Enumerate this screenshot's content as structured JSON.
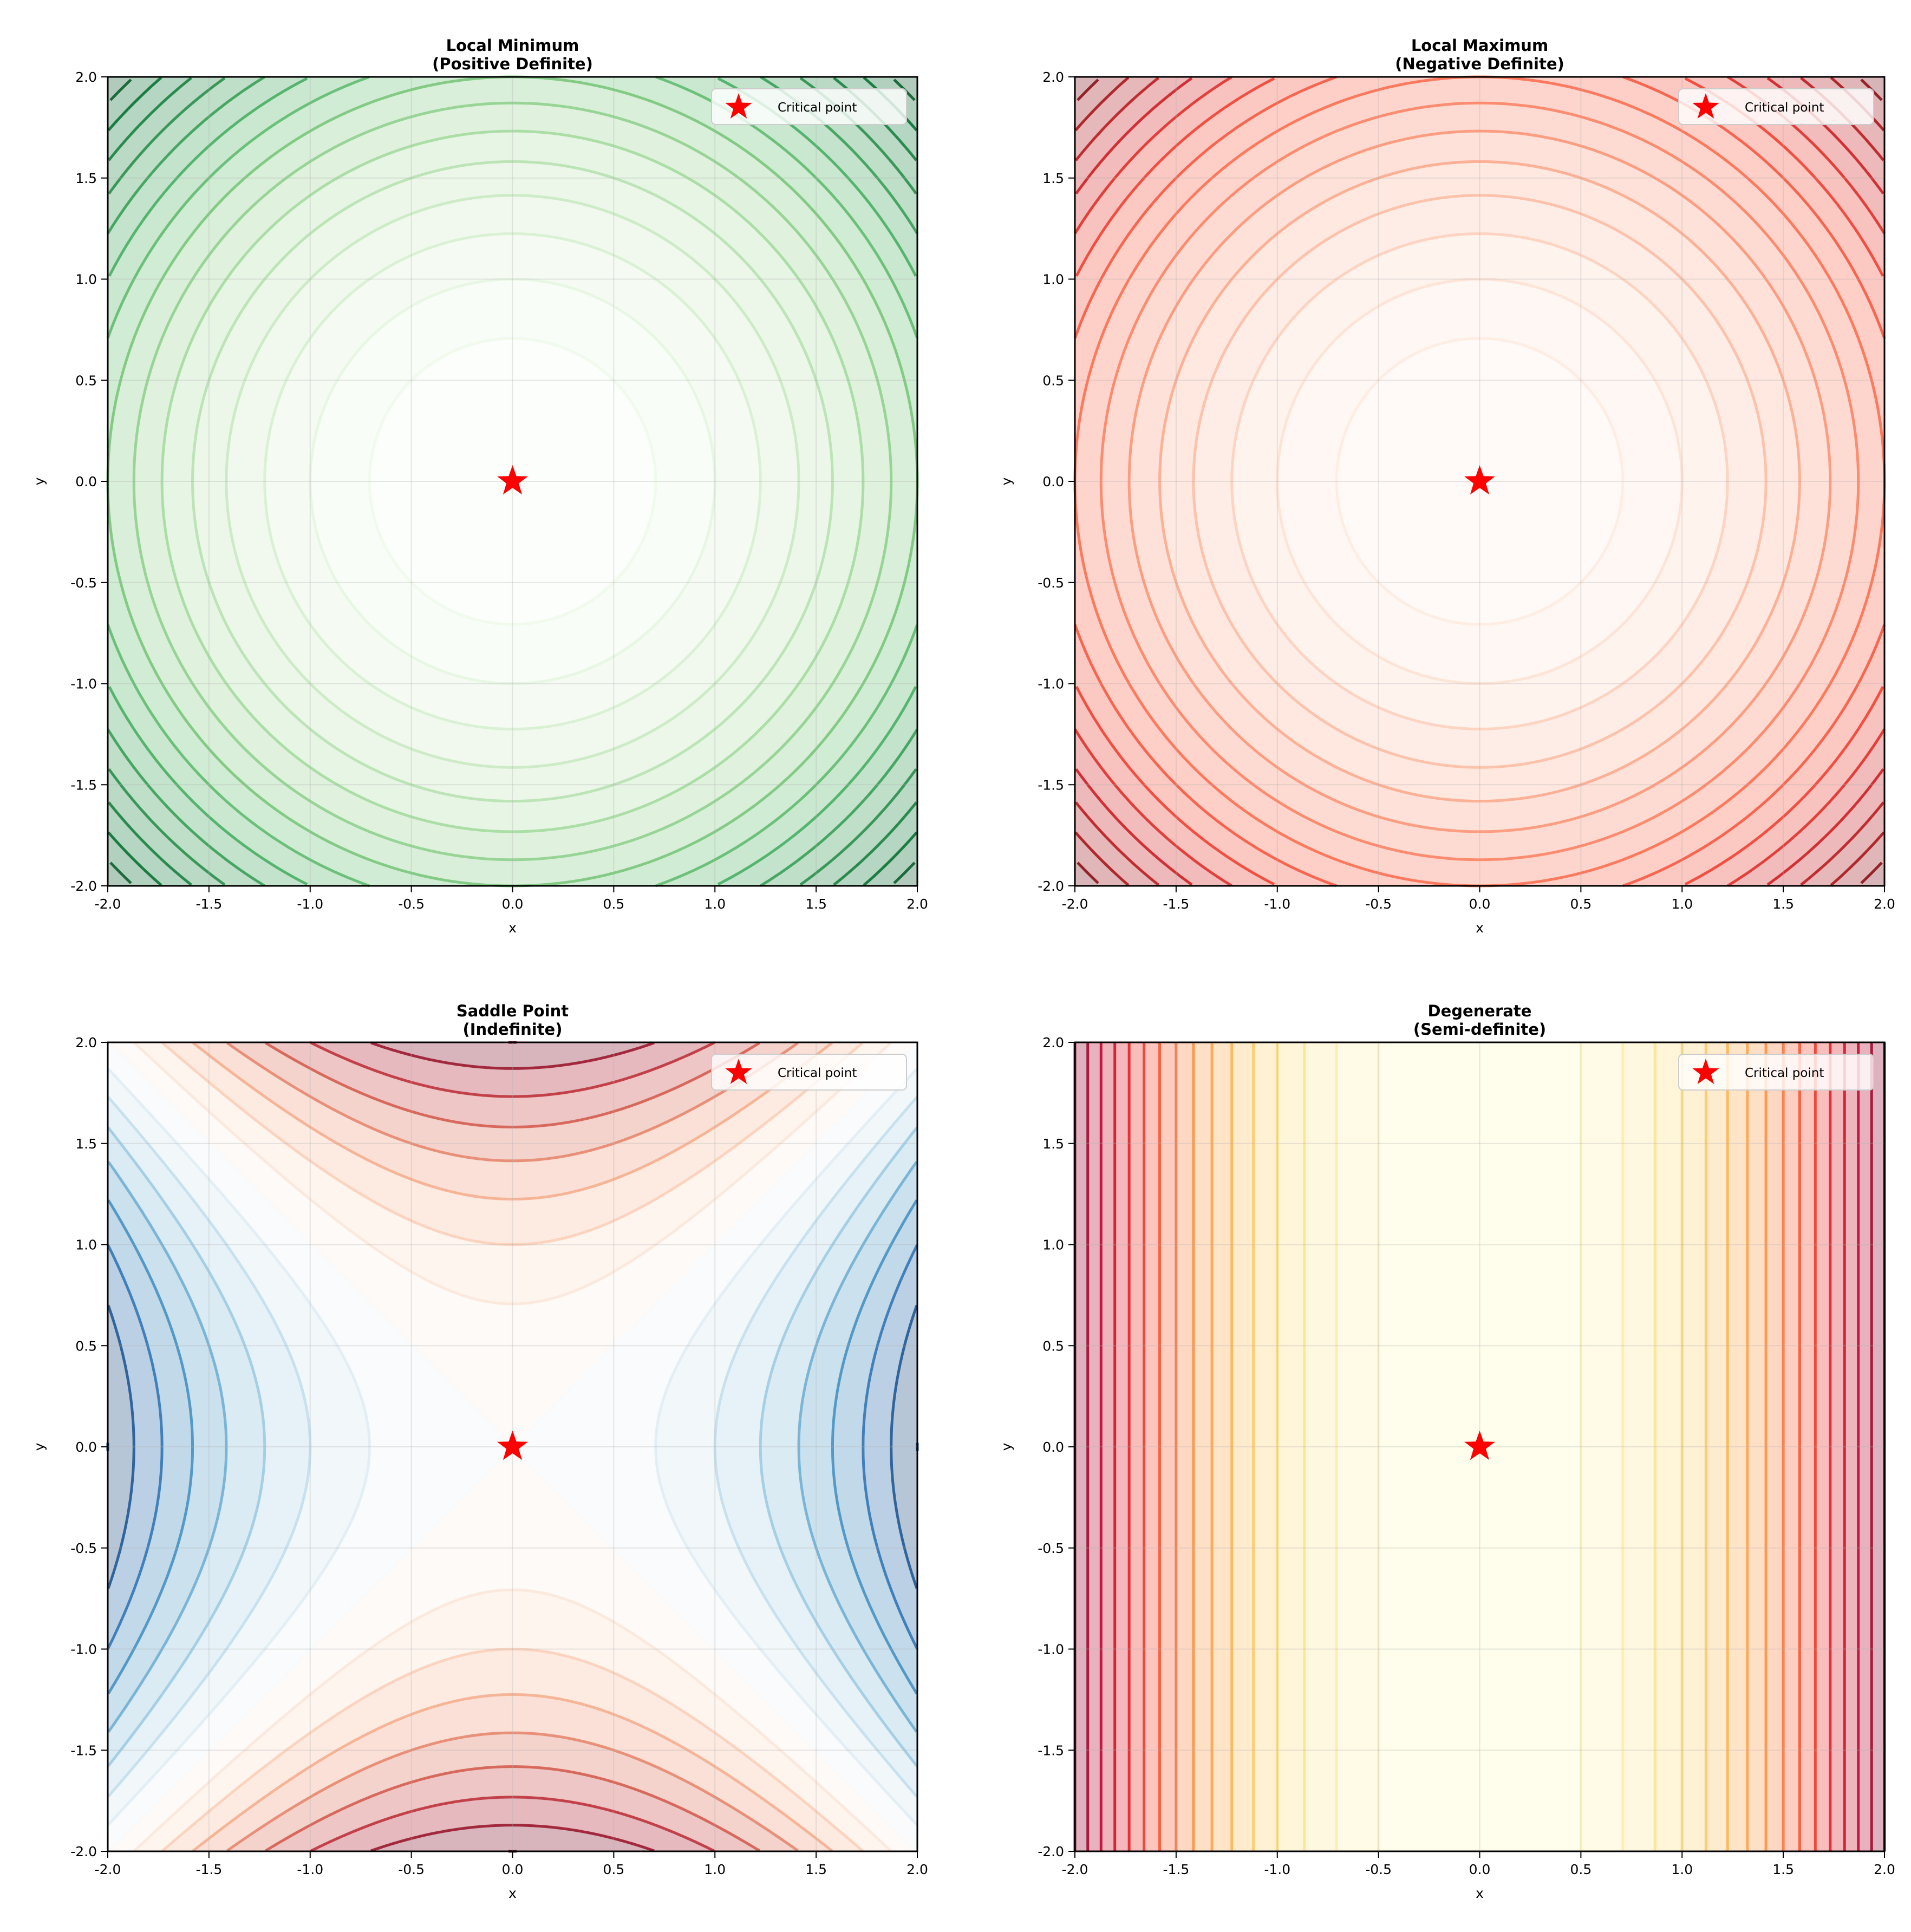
{
  "chart_data": [
    {
      "type": "contour",
      "title": "Local Minimum\n(Positive Definite)",
      "field": "x^2 + y^2",
      "colormap": "Greens",
      "levels": {
        "min": 0,
        "max": 8,
        "step": 0.5
      },
      "xlabel": "x",
      "ylabel": "y",
      "xlim": [
        -2,
        2
      ],
      "ylim": [
        -2,
        2
      ],
      "xticks": [
        "-2.0",
        "-1.5",
        "-1.0",
        "-0.5",
        "0.0",
        "0.5",
        "1.0",
        "1.5",
        "2.0"
      ],
      "yticks": [
        "-2.0",
        "-1.5",
        "-1.0",
        "-0.5",
        "0.0",
        "0.5",
        "1.0",
        "1.5",
        "2.0"
      ],
      "grid": true,
      "critical_point": [
        0,
        0
      ],
      "marker_color": "#ff0000",
      "legend": {
        "label": "Critical point",
        "placement": "upper right"
      }
    },
    {
      "type": "contour",
      "title": "Local Maximum\n(Negative Definite)",
      "field": "-(x^2 + y^2)",
      "colormap": "Reds_r",
      "levels": {
        "min": -8,
        "max": 0,
        "step": 0.5
      },
      "xlabel": "x",
      "ylabel": "y",
      "xlim": [
        -2,
        2
      ],
      "ylim": [
        -2,
        2
      ],
      "xticks": [
        "-2.0",
        "-1.5",
        "-1.0",
        "-0.5",
        "0.0",
        "0.5",
        "1.0",
        "1.5",
        "2.0"
      ],
      "yticks": [
        "-2.0",
        "-1.5",
        "-1.0",
        "-0.5",
        "0.0",
        "0.5",
        "1.0",
        "1.5",
        "2.0"
      ],
      "grid": true,
      "critical_point": [
        0,
        0
      ],
      "marker_color": "#ff0000",
      "legend": {
        "label": "Critical point",
        "placement": "upper right"
      }
    },
    {
      "type": "contour",
      "title": "Saddle Point\n(Indefinite)",
      "field": "x^2 - y^2",
      "colormap": "RdBu",
      "levels": {
        "min": -4,
        "max": 4,
        "step": 0.5
      },
      "xlabel": "x",
      "ylabel": "y",
      "xlim": [
        -2,
        2
      ],
      "ylim": [
        -2,
        2
      ],
      "xticks": [
        "-2.0",
        "-1.5",
        "-1.0",
        "-0.5",
        "0.0",
        "0.5",
        "1.0",
        "1.5",
        "2.0"
      ],
      "yticks": [
        "-2.0",
        "-1.5",
        "-1.0",
        "-0.5",
        "0.0",
        "0.5",
        "1.0",
        "1.5",
        "2.0"
      ],
      "grid": true,
      "critical_point": [
        0,
        0
      ],
      "marker_color": "#ff0000",
      "legend": {
        "label": "Critical point",
        "placement": "upper right"
      }
    },
    {
      "type": "contour",
      "title": "Degenerate\n(Semi-definite)",
      "field": "x^2",
      "colormap": "YlOrRd",
      "levels": {
        "min": 0,
        "max": 4,
        "step": 0.25
      },
      "xlabel": "x",
      "ylabel": "y",
      "xlim": [
        -2,
        2
      ],
      "ylim": [
        -2,
        2
      ],
      "xticks": [
        "-2.0",
        "-1.5",
        "-1.0",
        "-0.5",
        "0.0",
        "0.5",
        "1.0",
        "1.5",
        "2.0"
      ],
      "yticks": [
        "-2.0",
        "-1.5",
        "-1.0",
        "-0.5",
        "0.0",
        "0.5",
        "1.0",
        "1.5",
        "2.0"
      ],
      "grid": true,
      "critical_point": [
        0,
        0
      ],
      "marker_color": "#ff0000",
      "legend": {
        "label": "Critical point",
        "placement": "upper right"
      }
    }
  ]
}
